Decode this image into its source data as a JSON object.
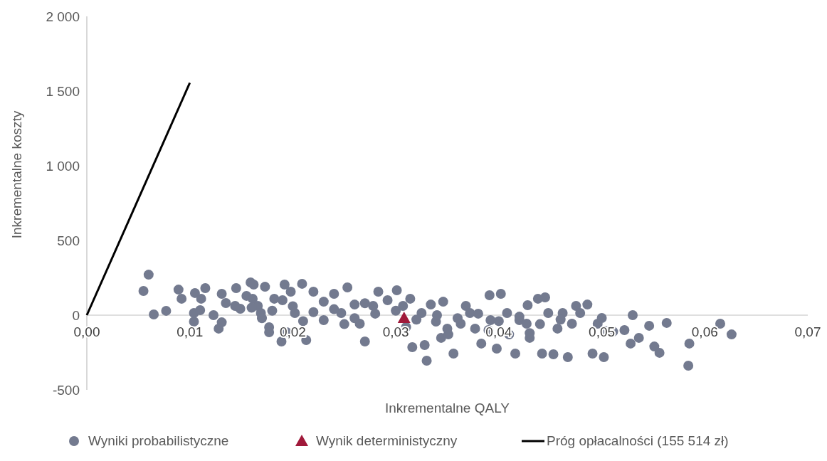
{
  "chart_data": {
    "type": "scatter",
    "xlabel": "Inkrementalne QALY",
    "ylabel": "Inkrementalne koszty",
    "xlim": [
      0,
      0.07
    ],
    "ylim": [
      -500,
      2000
    ],
    "xticks": [
      {
        "value": 0,
        "label": "0,00"
      },
      {
        "value": 0.01,
        "label": "0,01"
      },
      {
        "value": 0.02,
        "label": "0,02"
      },
      {
        "value": 0.03,
        "label": "0,03"
      },
      {
        "value": 0.04,
        "label": "0,04"
      },
      {
        "value": 0.05,
        "label": "0,05"
      },
      {
        "value": 0.06,
        "label": "0,06"
      },
      {
        "value": 0.07,
        "label": "0,07"
      }
    ],
    "yticks": [
      -500,
      0,
      500,
      {
        "value": 1000,
        "label": "1 000"
      },
      {
        "value": 1500,
        "label": "1 500"
      },
      {
        "value": 2000,
        "label": "2 000"
      }
    ],
    "grid": false,
    "legend": "bottom",
    "series": [
      {
        "name": "Wyniki probabilistyczne",
        "marker": "circle",
        "color": "#737a8f",
        "x": [
          0.0055,
          0.006,
          0.0065,
          0.0077,
          0.0089,
          0.0092,
          0.0104,
          0.0104,
          0.0105,
          0.0111,
          0.0115,
          0.011,
          0.0123,
          0.0128,
          0.0131,
          0.0131,
          0.0135,
          0.0144,
          0.0145,
          0.0149,
          0.0155,
          0.0159,
          0.0162,
          0.0161,
          0.0166,
          0.0173,
          0.0177,
          0.0177,
          0.0169,
          0.0182,
          0.0189,
          0.0192,
          0.0194,
          0.0198,
          0.0202,
          0.0209,
          0.0213,
          0.022,
          0.023,
          0.024,
          0.0247,
          0.0253,
          0.026,
          0.0265,
          0.027,
          0.0278,
          0.0283,
          0.0292,
          0.0301,
          0.0307,
          0.0314,
          0.0316,
          0.0325,
          0.0328,
          0.033,
          0.0334,
          0.0339,
          0.0344,
          0.0346,
          0.0351,
          0.0356,
          0.0363,
          0.0368,
          0.0372,
          0.0377,
          0.0383,
          0.0391,
          0.0392,
          0.0398,
          0.0402,
          0.0408,
          0.041,
          0.0416,
          0.042,
          0.0427,
          0.0428,
          0.043,
          0.0438,
          0.0442,
          0.0445,
          0.0448,
          0.0453,
          0.0457,
          0.0462,
          0.0467,
          0.0471,
          0.0475,
          0.0479,
          0.0486,
          0.0491,
          0.0496,
          0.05,
          0.0502,
          0.0503,
          0.0511,
          0.0522,
          0.053,
          0.0528,
          0.0536,
          0.0546,
          0.0551,
          0.0556,
          0.0563,
          0.0585,
          0.0584,
          0.0615,
          0.0626,
          0.016,
          0.018,
          0.02,
          0.022,
          0.024,
          0.026,
          0.028,
          0.03,
          0.032,
          0.034,
          0.036,
          0.038,
          0.04,
          0.042,
          0.044,
          0.046,
          0.019,
          0.023,
          0.027,
          0.031,
          0.035,
          0.039,
          0.043,
          0.025,
          0.021,
          0.017
        ],
        "values": [
          162,
          271,
          5,
          29,
          171,
          110,
          14,
          -43,
          148,
          110,
          181,
          33,
          0,
          -90,
          -48,
          143,
          81,
          62,
          181,
          43,
          129,
          219,
          205,
          110,
          62,
          190,
          -81,
          -114,
          14,
          110,
          -176,
          205,
          -114,
          157,
          14,
          210,
          -167,
          157,
          -33,
          143,
          14,
          186,
          71,
          -57,
          -176,
          62,
          157,
          100,
          167,
          62,
          110,
          -214,
          14,
          -200,
          -305,
          71,
          -43,
          -152,
          90,
          -129,
          -257,
          -57,
          62,
          14,
          -90,
          -190,
          133,
          -33,
          -224,
          143,
          14,
          -129,
          -257,
          -33,
          -57,
          67,
          -152,
          110,
          -257,
          119,
          14,
          -262,
          -90,
          14,
          -281,
          -57,
          62,
          14,
          71,
          -257,
          -57,
          -19,
          -281,
          -105,
          -110,
          -100,
          0,
          -190,
          -152,
          -71,
          -210,
          -252,
          -52,
          -190,
          -338,
          -57,
          -129,
          50,
          30,
          60,
          20,
          40,
          -20,
          10,
          30,
          -30,
          0,
          -20,
          10,
          -40,
          -10,
          -60,
          -30,
          100,
          90,
          80,
          -80,
          -90,
          -100,
          -120,
          -60,
          -40,
          -20
        ]
      },
      {
        "name": "Wynik deterministyczny",
        "marker": "triangle",
        "color": "#a0193a",
        "x": [
          0.0308
        ],
        "values": [
          -19
        ]
      },
      {
        "name": "Próg opłacalności (155 514 zł)",
        "type": "line",
        "marker": "none",
        "color": "#000000",
        "x": [
          0,
          0.01
        ],
        "values": [
          0,
          1555
        ]
      }
    ]
  }
}
